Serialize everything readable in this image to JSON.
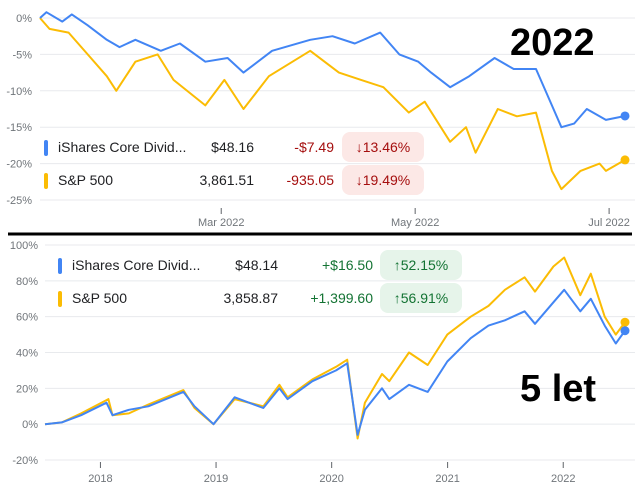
{
  "colors": {
    "ishares": "#4285f4",
    "sp500": "#fbbc04",
    "down_text": "#a50e0e",
    "down_bg": "#fce8e6",
    "up_text": "#137333",
    "up_bg": "#e6f4ea",
    "grid": "#e8eaed"
  },
  "chart_data": [
    {
      "type": "line",
      "label": "2022",
      "yticks": [
        "0%",
        "-5%",
        "-10%",
        "-15%",
        "-20%",
        "-25%"
      ],
      "ylim": [
        -25,
        0
      ],
      "yvals": [
        0,
        -5,
        -10,
        -15,
        -20,
        -25
      ],
      "xticks": [
        {
          "label": "Mar 2022",
          "date": "2022-03-01"
        },
        {
          "label": "May 2022",
          "date": "2022-05-01"
        },
        {
          "label": "Jul 2022",
          "date": "2022-07-01"
        }
      ],
      "xlim": [
        "2022-01-03",
        "2022-07-06"
      ],
      "legend": [
        {
          "name": "iShares Core Divid...",
          "price": "$48.16",
          "change": "-$7.49",
          "pct": "13.46%",
          "dir": "down"
        },
        {
          "name": "S&P 500",
          "price": "3,861.51",
          "change": "-935.05",
          "pct": "19.49%",
          "dir": "down"
        }
      ],
      "series": [
        {
          "name": "iShares Core Divid...",
          "points": [
            [
              "2022-01-03",
              0
            ],
            [
              "2022-01-05",
              0.8
            ],
            [
              "2022-01-10",
              -0.5
            ],
            [
              "2022-01-13",
              0.5
            ],
            [
              "2022-01-18",
              -1
            ],
            [
              "2022-01-24",
              -3
            ],
            [
              "2022-01-28",
              -4
            ],
            [
              "2022-02-02",
              -3
            ],
            [
              "2022-02-10",
              -4.5
            ],
            [
              "2022-02-16",
              -3.5
            ],
            [
              "2022-02-24",
              -6
            ],
            [
              "2022-03-03",
              -5.5
            ],
            [
              "2022-03-08",
              -7.5
            ],
            [
              "2022-03-17",
              -4.5
            ],
            [
              "2022-03-29",
              -3
            ],
            [
              "2022-04-05",
              -2.5
            ],
            [
              "2022-04-12",
              -3.5
            ],
            [
              "2022-04-20",
              -2
            ],
            [
              "2022-04-26",
              -5
            ],
            [
              "2022-05-02",
              -6
            ],
            [
              "2022-05-06",
              -7.5
            ],
            [
              "2022-05-12",
              -9.5
            ],
            [
              "2022-05-18",
              -8
            ],
            [
              "2022-05-26",
              -5.5
            ],
            [
              "2022-06-01",
              -7
            ],
            [
              "2022-06-08",
              -7
            ],
            [
              "2022-06-13",
              -12
            ],
            [
              "2022-06-16",
              -15
            ],
            [
              "2022-06-20",
              -14.5
            ],
            [
              "2022-06-24",
              -12.5
            ],
            [
              "2022-06-30",
              -14
            ],
            [
              "2022-07-06",
              -13.46
            ]
          ]
        },
        {
          "name": "S&P 500",
          "points": [
            [
              "2022-01-03",
              0
            ],
            [
              "2022-01-06",
              -1.5
            ],
            [
              "2022-01-12",
              -2
            ],
            [
              "2022-01-18",
              -5
            ],
            [
              "2022-01-24",
              -8
            ],
            [
              "2022-01-27",
              -10
            ],
            [
              "2022-02-02",
              -6
            ],
            [
              "2022-02-09",
              -5
            ],
            [
              "2022-02-14",
              -8.5
            ],
            [
              "2022-02-24",
              -12
            ],
            [
              "2022-03-02",
              -8.5
            ],
            [
              "2022-03-08",
              -12.5
            ],
            [
              "2022-03-16",
              -8
            ],
            [
              "2022-03-29",
              -4.5
            ],
            [
              "2022-04-07",
              -7.5
            ],
            [
              "2022-04-14",
              -8.5
            ],
            [
              "2022-04-21",
              -9.5
            ],
            [
              "2022-04-29",
              -13
            ],
            [
              "2022-05-04",
              -11.5
            ],
            [
              "2022-05-12",
              -17
            ],
            [
              "2022-05-17",
              -15
            ],
            [
              "2022-05-20",
              -18.5
            ],
            [
              "2022-05-27",
              -12.5
            ],
            [
              "2022-06-02",
              -13.5
            ],
            [
              "2022-06-08",
              -13
            ],
            [
              "2022-06-13",
              -21
            ],
            [
              "2022-06-16",
              -23.5
            ],
            [
              "2022-06-22",
              -21
            ],
            [
              "2022-06-28",
              -20
            ],
            [
              "2022-06-30",
              -21
            ],
            [
              "2022-07-06",
              -19.49
            ]
          ]
        }
      ]
    },
    {
      "type": "line",
      "label": "5 let",
      "yticks": [
        "100%",
        "80%",
        "60%",
        "40%",
        "20%",
        "0%",
        "-20%"
      ],
      "ylim": [
        -20,
        100
      ],
      "yvals": [
        100,
        80,
        60,
        40,
        20,
        0,
        -20
      ],
      "xticks": [
        {
          "label": "2018",
          "date": "2018-01-01"
        },
        {
          "label": "2019",
          "date": "2019-01-01"
        },
        {
          "label": "2020",
          "date": "2020-01-01"
        },
        {
          "label": "2021",
          "date": "2021-01-01"
        },
        {
          "label": "2022",
          "date": "2022-01-01"
        }
      ],
      "xlim": [
        "2017-07-10",
        "2022-07-15"
      ],
      "legend": [
        {
          "name": "iShares Core Divid...",
          "price": "$48.14",
          "change": "+$16.50",
          "pct": "52.15%",
          "dir": "up"
        },
        {
          "name": "S&P 500",
          "price": "3,858.87",
          "change": "+1,399.60",
          "pct": "56.91%",
          "dir": "up"
        }
      ],
      "series": [
        {
          "name": "iShares Core Divid...",
          "points": [
            [
              "2017-07-10",
              0
            ],
            [
              "2017-09-01",
              1
            ],
            [
              "2017-11-01",
              5
            ],
            [
              "2018-01-20",
              12
            ],
            [
              "2018-02-08",
              5
            ],
            [
              "2018-04-01",
              8
            ],
            [
              "2018-06-01",
              10
            ],
            [
              "2018-09-20",
              18
            ],
            [
              "2018-10-25",
              10
            ],
            [
              "2018-12-24",
              0
            ],
            [
              "2019-03-01",
              15
            ],
            [
              "2019-05-30",
              9
            ],
            [
              "2019-07-20",
              20
            ],
            [
              "2019-08-15",
              14
            ],
            [
              "2019-11-01",
              24
            ],
            [
              "2020-01-15",
              30
            ],
            [
              "2020-02-19",
              34
            ],
            [
              "2020-03-23",
              -6
            ],
            [
              "2020-04-15",
              8
            ],
            [
              "2020-06-08",
              20
            ],
            [
              "2020-07-01",
              14
            ],
            [
              "2020-09-01",
              22
            ],
            [
              "2020-10-30",
              18
            ],
            [
              "2020-12-31",
              35
            ],
            [
              "2021-03-15",
              48
            ],
            [
              "2021-05-10",
              55
            ],
            [
              "2021-07-01",
              58
            ],
            [
              "2021-09-01",
              63
            ],
            [
              "2021-10-04",
              56
            ],
            [
              "2021-12-01",
              68
            ],
            [
              "2022-01-04",
              75
            ],
            [
              "2022-02-24",
              63
            ],
            [
              "2022-03-29",
              70
            ],
            [
              "2022-05-12",
              55
            ],
            [
              "2022-06-16",
              45
            ],
            [
              "2022-07-15",
              52.15
            ]
          ]
        },
        {
          "name": "S&P 500",
          "points": [
            [
              "2017-07-10",
              0
            ],
            [
              "2017-09-01",
              1
            ],
            [
              "2017-11-01",
              6
            ],
            [
              "2018-01-26",
              14
            ],
            [
              "2018-02-08",
              5
            ],
            [
              "2018-04-01",
              6
            ],
            [
              "2018-06-01",
              11
            ],
            [
              "2018-09-20",
              19
            ],
            [
              "2018-10-25",
              9
            ],
            [
              "2018-12-24",
              0
            ],
            [
              "2019-03-01",
              14
            ],
            [
              "2019-05-30",
              10
            ],
            [
              "2019-07-20",
              22
            ],
            [
              "2019-08-15",
              15
            ],
            [
              "2019-11-01",
              25
            ],
            [
              "2020-01-15",
              32
            ],
            [
              "2020-02-19",
              36
            ],
            [
              "2020-03-23",
              -8
            ],
            [
              "2020-04-15",
              12
            ],
            [
              "2020-06-08",
              28
            ],
            [
              "2020-07-01",
              24
            ],
            [
              "2020-09-01",
              40
            ],
            [
              "2020-10-30",
              33
            ],
            [
              "2020-12-31",
              50
            ],
            [
              "2021-03-15",
              60
            ],
            [
              "2021-05-10",
              66
            ],
            [
              "2021-07-01",
              75
            ],
            [
              "2021-09-01",
              82
            ],
            [
              "2021-10-04",
              74
            ],
            [
              "2021-12-01",
              88
            ],
            [
              "2022-01-04",
              93
            ],
            [
              "2022-02-24",
              72
            ],
            [
              "2022-03-29",
              84
            ],
            [
              "2022-05-12",
              60
            ],
            [
              "2022-06-16",
              50
            ],
            [
              "2022-07-15",
              56.91
            ]
          ]
        }
      ]
    }
  ]
}
